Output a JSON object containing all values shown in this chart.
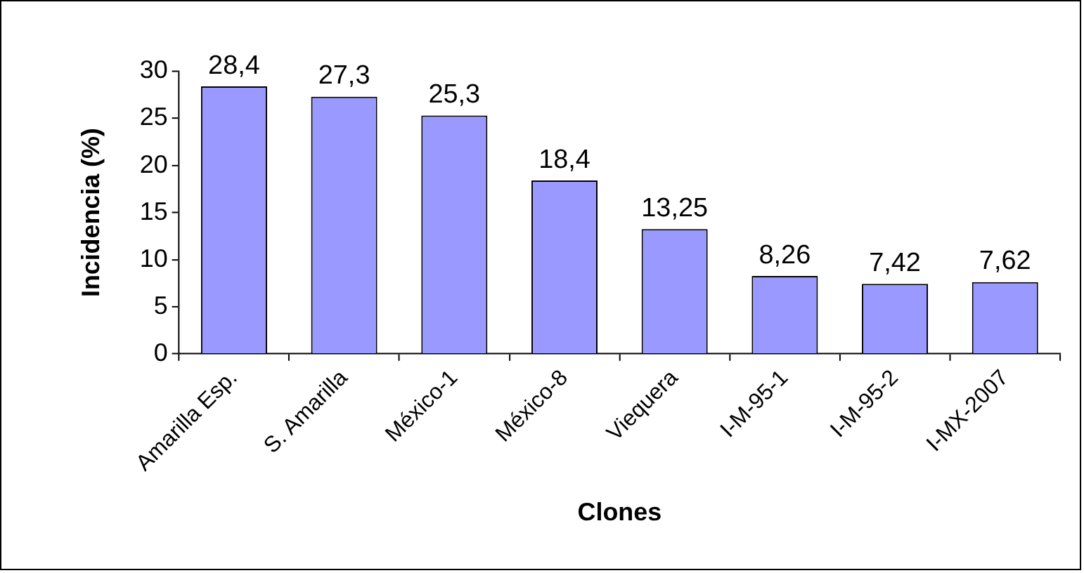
{
  "chart_data": {
    "type": "bar",
    "xlabel": "Clones",
    "ylabel": "Incidencia (%)",
    "categories": [
      "Amarilla Esp.",
      "S. Amarilla",
      "México-1",
      "México-8",
      "Viequera",
      "I-M-95-1",
      "I-M-95-2",
      "I-MX-2007"
    ],
    "values": [
      28.4,
      27.3,
      25.3,
      18.4,
      13.25,
      8.26,
      7.42,
      7.62
    ],
    "value_labels": [
      "28,4",
      "27,3",
      "25,3",
      "18,4",
      "13,25",
      "8,26",
      "7,42",
      "7,62"
    ],
    "color": "#9999ff",
    "ylim": [
      0,
      30
    ],
    "yticks": [
      0,
      5,
      10,
      15,
      20,
      25,
      30
    ],
    "grid": false,
    "legend": false
  }
}
